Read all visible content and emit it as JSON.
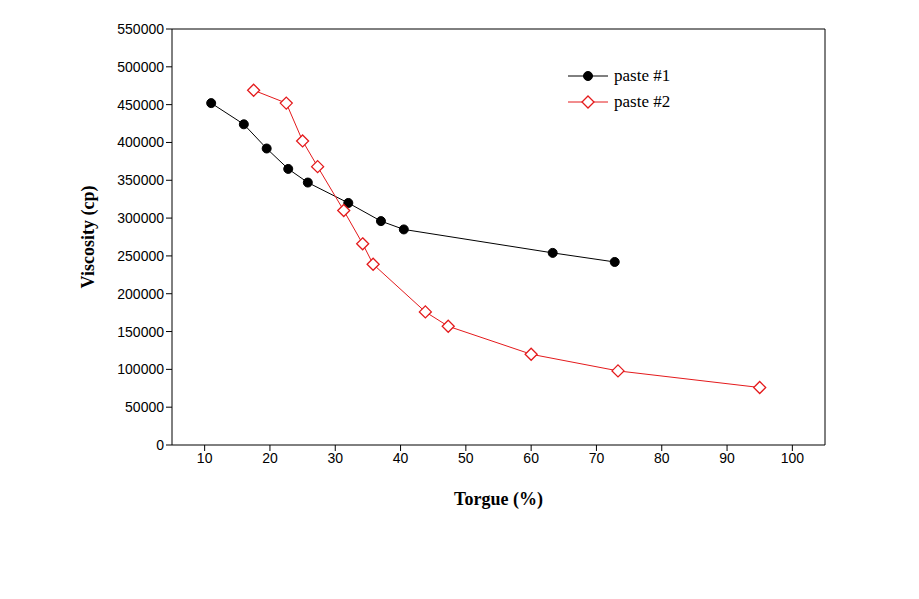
{
  "chart_data": {
    "type": "line",
    "x_label": "Torgue (%)",
    "y_label": "Viscosity (cp)",
    "xlim": [
      5,
      105
    ],
    "xticks": [
      10,
      20,
      30,
      40,
      50,
      60,
      70,
      80,
      90,
      100
    ],
    "ylim": [
      0,
      550000
    ],
    "yticks": [
      0,
      50000,
      100000,
      150000,
      200000,
      250000,
      300000,
      350000,
      400000,
      450000,
      500000,
      550000
    ],
    "grid": false,
    "legend": "upper right",
    "series": [
      {
        "name": "paste #1",
        "color": "#000000",
        "marker": "circle",
        "line_style": "solid",
        "x": [
          11,
          16,
          19.5,
          22.8,
          25.8,
          32,
          37,
          40.5,
          63.3,
          72.8
        ],
        "values": [
          452000,
          424000,
          392000,
          365000,
          347000,
          320000,
          296000,
          285000,
          254000,
          242000
        ]
      },
      {
        "name": "paste #2",
        "color": "#e41a1c",
        "marker": "diamond",
        "line_style": "solid",
        "x": [
          17.5,
          22.5,
          25,
          27.3,
          31.3,
          34.2,
          35.8,
          43.8,
          47.3,
          60,
          73.3,
          95
        ],
        "values": [
          469000,
          452000,
          402000,
          368000,
          310000,
          266000,
          239000,
          176000,
          157000,
          120000,
          98000,
          76000
        ]
      }
    ]
  }
}
